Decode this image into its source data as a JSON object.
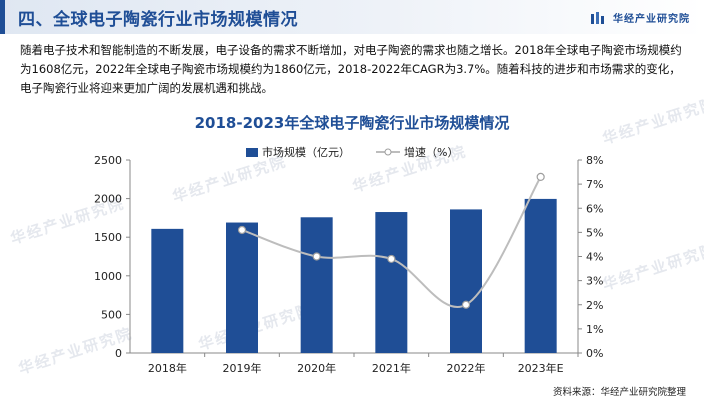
{
  "header": {
    "title": "四、全球电子陶瓷行业市场规模情况",
    "brand": "华经产业研究院"
  },
  "intro": {
    "text": "随着电子技术和智能制造的不断发展，电子设备的需求不断增加，对电子陶瓷的需求也随之增长。2018年全球电子陶瓷市场规模约为1608亿元，2022年全球电子陶瓷市场规模约为1860亿元，2018-2022年CAGR为3.7%。随着科技的进步和市场需求的变化，电子陶瓷行业将迎来更加广阔的发展机遇和挑战。"
  },
  "legend": {
    "bar_label": "市场规模（亿元）",
    "line_label": "增速（%）"
  },
  "watermark_text": "华经产业研究院",
  "source": "资料来源：华经产业研究院整理",
  "colors": {
    "bar": "#1f4e96",
    "line": "#bdbdbd",
    "title": "#1f4e96"
  },
  "chart_data": {
    "type": "bar",
    "title": "2018-2023年全球电子陶瓷行业市场规模情况",
    "categories": [
      "2018年",
      "2019年",
      "2020年",
      "2021年",
      "2022年",
      "2023年E"
    ],
    "series": [
      {
        "name": "市场规模（亿元）",
        "type": "bar",
        "axis": "left",
        "values": [
          1608,
          1690,
          1758,
          1826,
          1860,
          1996
        ]
      },
      {
        "name": "增速（%）",
        "type": "line",
        "axis": "right",
        "values": [
          null,
          5.1,
          4.0,
          3.9,
          2.0,
          7.3
        ]
      }
    ],
    "ylim_left": [
      0,
      2500
    ],
    "yticks_left": [
      "0",
      "500",
      "1000",
      "1500",
      "2000",
      "2500"
    ],
    "ylim_right": [
      0,
      8
    ],
    "yticks_right": [
      "0%",
      "1%",
      "2%",
      "3%",
      "4%",
      "5%",
      "6%",
      "7%",
      "8%"
    ],
    "xlabel": "",
    "ylabel": ""
  }
}
